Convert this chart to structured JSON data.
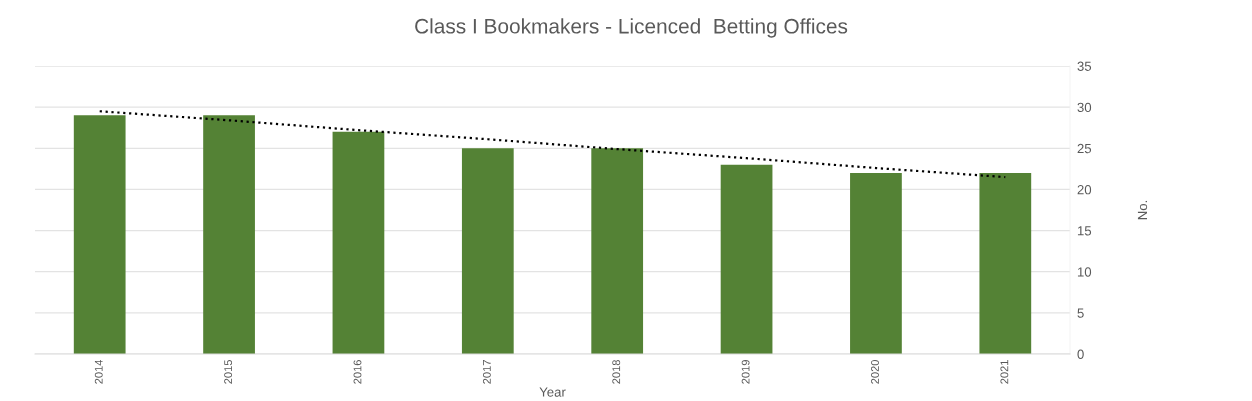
{
  "chart_data": {
    "type": "bar",
    "title": "Class I Bookmakers - Licenced  Betting Offices",
    "xlabel": "Year",
    "ylabel": "No.",
    "categories": [
      "2014",
      "2015",
      "2016",
      "2017",
      "2018",
      "2019",
      "2020",
      "2021"
    ],
    "series": [
      {
        "color": "#548235",
        "values": [
          29,
          29,
          27,
          25,
          25,
          23,
          22,
          22
        ]
      },
      {
        "type": "line",
        "color": "#000000",
        "line_style": "dotted",
        "values": [
          29.5,
          28.4,
          27.2,
          26.1,
          24.9,
          23.8,
          22.6,
          21.5
        ]
      }
    ],
    "ylim": [
      0,
      35
    ],
    "yticks": [
      0,
      5,
      10,
      15,
      20,
      25,
      30,
      35
    ],
    "grid": "y"
  }
}
